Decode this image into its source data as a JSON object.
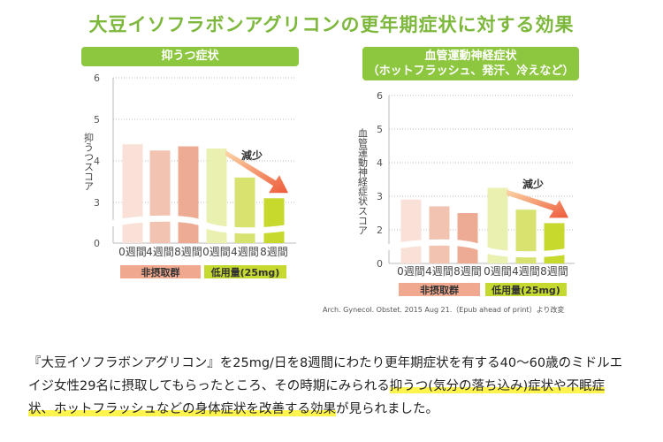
{
  "title": "大豆イソフラボンアグリコンの更年期症状に対する効果",
  "colors": {
    "accent": "#8dc63f",
    "nonintake": "#f0a88f",
    "lowdose": "#c5d930",
    "highlight": "#fff34d"
  },
  "chart_data": [
    {
      "type": "bar",
      "title": "抑うつ症状",
      "ylabel": "抑うつスコア",
      "yticks": [
        "0",
        "3",
        "4",
        "5",
        "6"
      ],
      "ylim": [
        0,
        6
      ],
      "axis_break": [
        0,
        3
      ],
      "categories": [
        "0週間",
        "4週間",
        "8週間",
        "0週間",
        "4週間",
        "8週間"
      ],
      "groups": [
        "非摂取群",
        "低用量(25mg)"
      ],
      "values": [
        4.4,
        4.25,
        4.35,
        4.3,
        3.6,
        3.1
      ],
      "annotation": "減少"
    },
    {
      "type": "bar",
      "title_line1": "血管運動神経症状",
      "title_line2": "（ホットフラッシュ、発汗、冷えなど）",
      "ylabel": "血管運動神経症状スコア",
      "yticks": [
        "0",
        "2",
        "3",
        "4",
        "5",
        "6"
      ],
      "ylim": [
        0,
        6
      ],
      "axis_break": [
        0,
        2
      ],
      "categories": [
        "0週間",
        "4週間",
        "8週間",
        "0週間",
        "4週間",
        "8週間"
      ],
      "groups": [
        "非摂取群",
        "低用量(25mg)"
      ],
      "values": [
        2.9,
        2.7,
        2.5,
        3.25,
        2.6,
        2.2
      ],
      "annotation": "減少"
    }
  ],
  "citation": "Arch. Gynecol. Obstet. 2015 Aug 21.（Epub ahead of print）より改変",
  "paragraph": {
    "line1": "『大豆イソフラボンアグリコン』を25mg/日を8週間にわたり更年期症状を有する40〜60歳のミドルエ",
    "line2a": "イジ女性29名に摂取してもらったところ、その時期にみられる",
    "line2b": "抑うつ(気分の落ち込み)症状や不眠症",
    "line3a": "状、ホットフラッシュなどの身体症状を改善する効果",
    "line3b": "が見られました。"
  }
}
